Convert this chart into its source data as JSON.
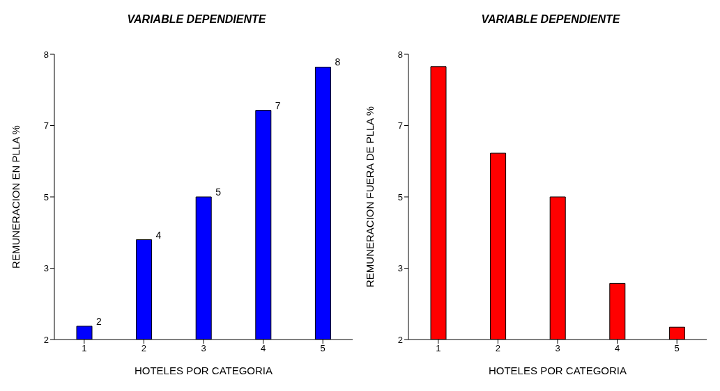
{
  "chart_data": [
    {
      "type": "bar",
      "title": "VARIABLE DEPENDIENTE",
      "xlabel": "HOTELES POR CATEGORIA",
      "ylabel": "REMUNERACION EN PLLA %",
      "categories": [
        "1",
        "2",
        "3",
        "4",
        "5"
      ],
      "values": [
        2.28,
        4.1,
        5.0,
        6.82,
        7.73
      ],
      "value_labels": [
        "2",
        "4",
        "5",
        "7",
        "8"
      ],
      "color": "#0000ff",
      "ylim": [
        2,
        8
      ],
      "yticks": [
        {
          "value": 2,
          "label": "2"
        },
        {
          "value": 3.5,
          "label": "3"
        },
        {
          "value": 5,
          "label": "5"
        },
        {
          "value": 6.5,
          "label": "7"
        },
        {
          "value": 8,
          "label": "8"
        }
      ]
    },
    {
      "type": "bar",
      "title": "VARIABLE DEPENDIENTE",
      "xlabel": "HOTELES POR CATEGORIA",
      "ylabel": "REMUNERACION FUERA DE PLLA %",
      "categories": [
        "1",
        "2",
        "3",
        "4",
        "5"
      ],
      "values": [
        7.74,
        5.92,
        5.0,
        3.18,
        2.26
      ],
      "color": "#ff0000",
      "ylim": [
        2,
        8
      ],
      "yticks": [
        {
          "value": 2,
          "label": "2"
        },
        {
          "value": 3.5,
          "label": "3"
        },
        {
          "value": 5,
          "label": "5"
        },
        {
          "value": 6.5,
          "label": "7"
        },
        {
          "value": 8,
          "label": "8"
        }
      ]
    }
  ]
}
